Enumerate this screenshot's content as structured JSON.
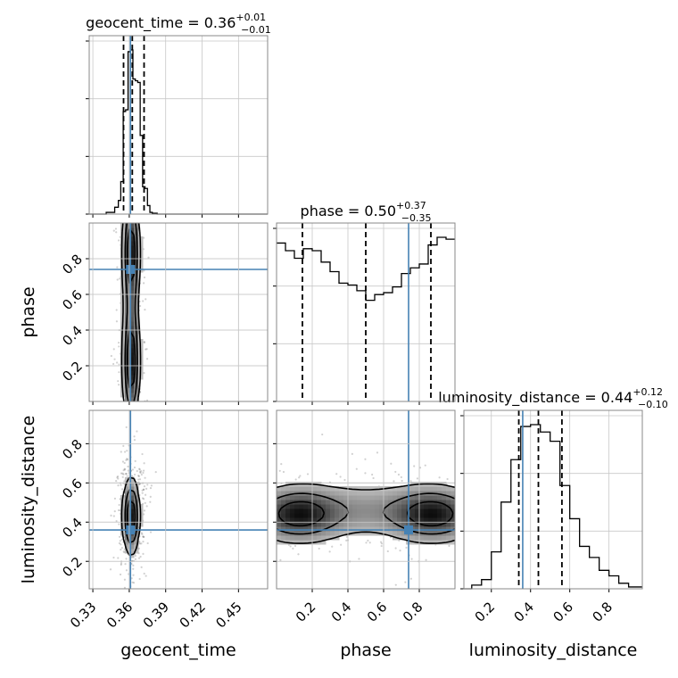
{
  "chart_data": {
    "type": "corner",
    "parameters": [
      "geocent_time",
      "phase",
      "luminosity_distance"
    ],
    "truths": {
      "geocent_time": 0.361,
      "phase": 0.74,
      "luminosity_distance": 0.36
    },
    "truth_color": "#4682b4",
    "titles": {
      "geocent_time": {
        "prefix": "geocent_time = 0.36",
        "plus": "+0.01",
        "minus": "−0.01"
      },
      "phase": {
        "prefix": "phase = 0.50",
        "plus": "+0.37",
        "minus": "−0.35"
      },
      "luminosity_distance": {
        "prefix": "luminosity_distance = 0.44",
        "plus": "+0.12",
        "minus": "−0.10"
      }
    },
    "axes": {
      "geocent_time": {
        "range": [
          0.327,
          0.474
        ],
        "ticks": [
          0.33,
          0.36,
          0.39,
          0.42,
          0.45
        ],
        "tick_labels": [
          "0.33",
          "0.36",
          "0.39",
          "0.42",
          "0.45"
        ]
      },
      "phase": {
        "range": [
          0.0,
          1.0
        ],
        "ticks": [
          0.2,
          0.4,
          0.6,
          0.8
        ],
        "tick_labels": [
          "0.2",
          "0.4",
          "0.6",
          "0.8"
        ]
      },
      "luminosity_distance": {
        "range": [
          0.06,
          0.97
        ],
        "ticks": [
          0.2,
          0.4,
          0.6,
          0.8
        ],
        "tick_labels": [
          "0.2",
          "0.4",
          "0.6",
          "0.8"
        ]
      }
    },
    "quantiles": {
      "geocent_time": [
        0.3553,
        0.3625,
        0.3722
      ],
      "phase": [
        0.145,
        0.5,
        0.865
      ],
      "luminosity_distance": [
        0.34,
        0.44,
        0.56
      ]
    },
    "histograms": {
      "geocent_time": {
        "edges": [
          0.327,
          0.334,
          0.341,
          0.348,
          0.351,
          0.353,
          0.355,
          0.357,
          0.359,
          0.361,
          0.363,
          0.365,
          0.367,
          0.369,
          0.371,
          0.373,
          0.375,
          0.377,
          0.379,
          0.383,
          0.39,
          0.474
        ],
        "counts": [
          0.0,
          0.0,
          0.01,
          0.04,
          0.08,
          0.19,
          0.6,
          0.61,
          0.95,
          0.96,
          0.79,
          0.78,
          0.77,
          0.46,
          0.16,
          0.15,
          0.05,
          0.01,
          0.005,
          0.0,
          0.0
        ]
      },
      "phase": {
        "edges": [
          0.0,
          0.05,
          0.1,
          0.15,
          0.2,
          0.25,
          0.3,
          0.35,
          0.4,
          0.45,
          0.5,
          0.55,
          0.6,
          0.65,
          0.7,
          0.75,
          0.8,
          0.85,
          0.9,
          0.95,
          1.0
        ],
        "counts": [
          0.83,
          0.79,
          0.75,
          0.8,
          0.79,
          0.73,
          0.68,
          0.62,
          0.61,
          0.58,
          0.53,
          0.56,
          0.57,
          0.6,
          0.67,
          0.7,
          0.72,
          0.82,
          0.86,
          0.85
        ]
      },
      "luminosity_distance": {
        "edges": [
          0.06,
          0.1,
          0.15,
          0.2,
          0.25,
          0.3,
          0.35,
          0.4,
          0.45,
          0.5,
          0.55,
          0.6,
          0.65,
          0.7,
          0.75,
          0.8,
          0.85,
          0.9,
          0.97
        ],
        "counts": [
          0.0,
          0.02,
          0.05,
          0.2,
          0.47,
          0.7,
          0.88,
          0.89,
          0.85,
          0.8,
          0.56,
          0.38,
          0.23,
          0.17,
          0.1,
          0.07,
          0.03,
          0.01
        ]
      }
    },
    "density_blobs": {
      "phase|geocent_time": [
        {
          "cx": 0.3615,
          "cy": 0.2,
          "sx": 0.0035,
          "sy": 0.17,
          "w": 1.0
        },
        {
          "cx": 0.3615,
          "cy": 0.85,
          "sx": 0.0035,
          "sy": 0.17,
          "w": 1.0
        },
        {
          "cx": 0.3615,
          "cy": 0.5,
          "sx": 0.0035,
          "sy": 0.25,
          "w": 0.35
        }
      ],
      "luminosity_distance|geocent_time": [
        {
          "cx": 0.3615,
          "cy": 0.43,
          "sx": 0.0035,
          "sy": 0.1,
          "w": 1.0
        }
      ],
      "luminosity_distance|phase": [
        {
          "cx": 0.12,
          "cy": 0.44,
          "sx": 0.14,
          "sy": 0.075,
          "w": 1.0
        },
        {
          "cx": 0.88,
          "cy": 0.44,
          "sx": 0.14,
          "sy": 0.075,
          "w": 1.0
        },
        {
          "cx": 0.5,
          "cy": 0.46,
          "sx": 0.3,
          "sy": 0.08,
          "w": 0.35
        }
      ]
    },
    "scatter_points": 450
  }
}
